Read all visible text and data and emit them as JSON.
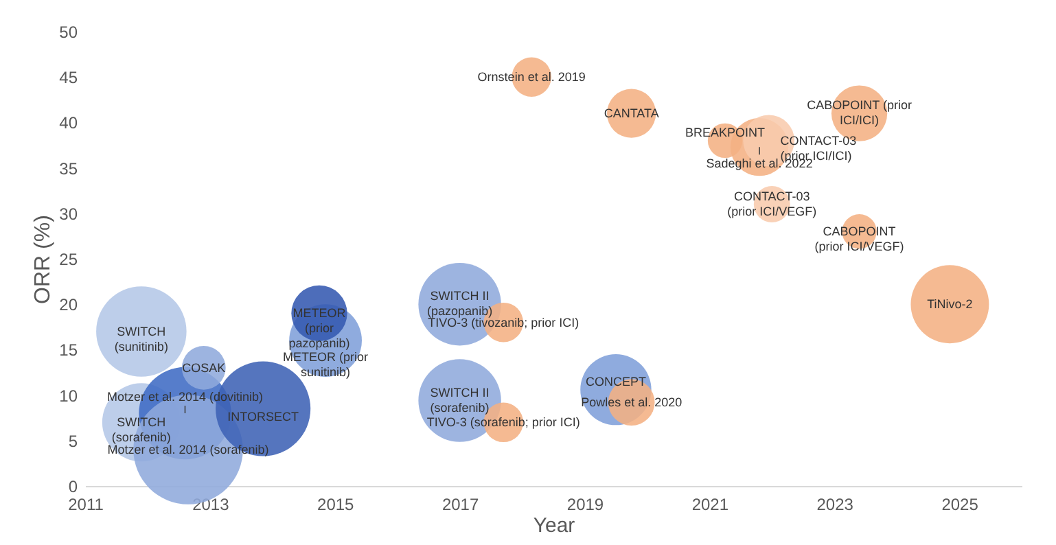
{
  "chart_data": {
    "type": "bubble",
    "xlabel": "Year",
    "ylabel": "ORR (%)",
    "xlim": [
      2011,
      2026
    ],
    "xticks": [
      2011,
      2013,
      2015,
      2017,
      2019,
      2021,
      2023,
      2025
    ],
    "ylim": [
      0,
      50
    ],
    "yticks": [
      0,
      5,
      10,
      15,
      20,
      25,
      30,
      35,
      40,
      45,
      50
    ],
    "grid": false,
    "series": [
      {
        "name": "SWITCH\n(sunitinib)",
        "color": "#b4c7e7",
        "x": [
          2011.9
        ],
        "values": [
          17
        ],
        "sizes": [
          0.68
        ]
      },
      {
        "name": "SWITCH\n(sorafenib)",
        "color": "#b4c7e7",
        "x": [
          2011.9
        ],
        "values": [
          7
        ],
        "sizes": [
          0.51
        ]
      },
      {
        "name": "Motzer et al. 2014 (dovitinib)",
        "color": "#3f6bc4",
        "x": [
          2012.6
        ],
        "values": [
          8
        ],
        "sizes": [
          0.71
        ]
      },
      {
        "name": "Motzer et al. 2014 (sorafenib)",
        "color": "#8faadc",
        "x": [
          2012.65
        ],
        "values": [
          4
        ],
        "sizes": [
          1
        ]
      },
      {
        "name": "COSAK",
        "color": "#8faadc",
        "x": [
          2012.9
        ],
        "values": [
          13
        ],
        "sizes": [
          0.16
        ]
      },
      {
        "name": "INTORSECT",
        "color": "#3d62b5",
        "x": [
          2013.85
        ],
        "values": [
          8.5
        ],
        "sizes": [
          0.75
        ]
      },
      {
        "name": "METEOR (prior\nsunitinib)",
        "color": "#7f9fda",
        "x": [
          2014.85
        ],
        "values": [
          16
        ],
        "sizes": [
          0.44
        ]
      },
      {
        "name": "METEOR\n(prior\npazopanib)",
        "color": "#3459b0",
        "x": [
          2014.75
        ],
        "values": [
          19
        ],
        "sizes": [
          0.26
        ]
      },
      {
        "name": "SWITCH II\n(pazopanib)",
        "color": "#8faadc",
        "x": [
          2017.0
        ],
        "values": [
          20
        ],
        "sizes": [
          0.57
        ]
      },
      {
        "name": "SWITCH II\n(sorafenib)",
        "color": "#8faadc",
        "x": [
          2017.0
        ],
        "values": [
          9.4
        ],
        "sizes": [
          0.57
        ]
      },
      {
        "name": "TIVO-3 (tivozanib; prior ICI)",
        "color": "#f4b183",
        "x": [
          2017.7
        ],
        "values": [
          18
        ],
        "sizes": [
          0.13
        ]
      },
      {
        "name": "TIVO-3 (sorafenib; prior ICI)",
        "color": "#f4b183",
        "x": [
          2017.7
        ],
        "values": [
          7
        ],
        "sizes": [
          0.13
        ]
      },
      {
        "name": "CONCEPT",
        "color": "#7f9fda",
        "x": [
          2019.5
        ],
        "values": [
          10.6
        ],
        "sizes": [
          0.42
        ]
      },
      {
        "name": "Powles et al. 2020",
        "color": "#f4b183",
        "x": [
          2019.75
        ],
        "values": [
          9.2
        ],
        "sizes": [
          0.18
        ]
      },
      {
        "name": "Ornstein et al. 2019",
        "color": "#f4b183",
        "x": [
          2018.15
        ],
        "values": [
          45
        ],
        "sizes": [
          0.13
        ]
      },
      {
        "name": "CANTATA",
        "color": "#f4b183",
        "x": [
          2019.75
        ],
        "values": [
          41
        ],
        "sizes": [
          0.2
        ]
      },
      {
        "name": "BREAKPOINT",
        "color": "#f4b183",
        "x": [
          2021.25
        ],
        "values": [
          38
        ],
        "sizes": [
          0.1
        ]
      },
      {
        "name": "Sadeghi et al. 2022",
        "color": "#f4b183",
        "x": [
          2021.8
        ],
        "values": [
          37.3
        ],
        "sizes": [
          0.28
        ]
      },
      {
        "name": "CONTACT-03\n(prior ICI/ICI)",
        "color": "#f8cbad",
        "x": [
          2021.95
        ],
        "values": [
          38
        ],
        "sizes": [
          0.22
        ]
      },
      {
        "name": "CONTACT-03\n(prior ICI/VEGF)",
        "color": "#f8cbad",
        "x": [
          2022.0
        ],
        "values": [
          31
        ],
        "sizes": [
          0.11
        ]
      },
      {
        "name": "CABOPOINT (prior\nICI/ICI)",
        "color": "#f4b183",
        "x": [
          2023.4
        ],
        "values": [
          41
        ],
        "sizes": [
          0.26
        ]
      },
      {
        "name": "CABOPOINT\n(prior ICI/VEGF)",
        "color": "#f4b183",
        "x": [
          2023.4
        ],
        "values": [
          28
        ],
        "sizes": [
          0.1
        ]
      },
      {
        "name": "TiNivo-2",
        "color": "#f4b183",
        "x": [
          2024.85
        ],
        "values": [
          20
        ],
        "sizes": [
          0.51
        ]
      }
    ]
  }
}
